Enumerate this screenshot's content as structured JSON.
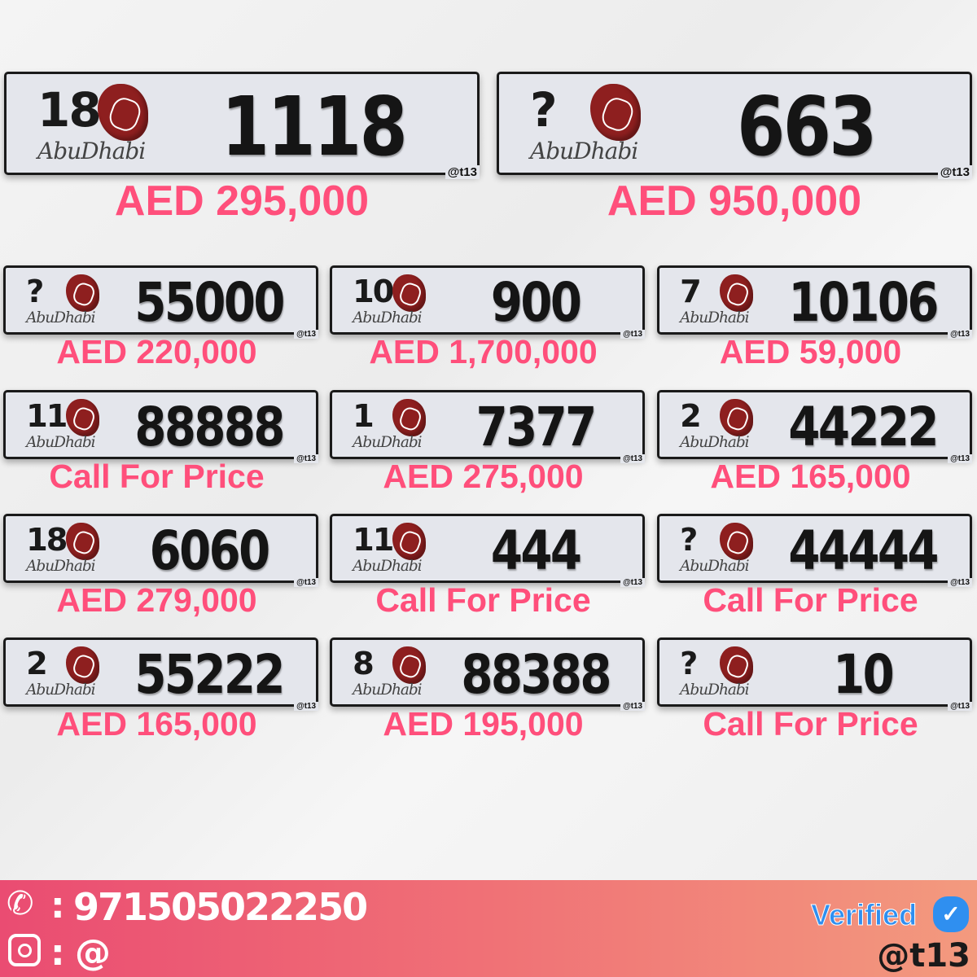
{
  "plates": [
    {
      "code": "18",
      "number": "1118",
      "price": "AED 295,000"
    },
    {
      "code": "?",
      "number": "663",
      "price": "AED 950,000"
    },
    {
      "code": "?",
      "number": "55000",
      "price": "AED 220,000"
    },
    {
      "code": "10",
      "number": "900",
      "price": "AED 1,700,000"
    },
    {
      "code": "7",
      "number": "10106",
      "price": "AED 59,000"
    },
    {
      "code": "11",
      "number": "88888",
      "price": "Call For Price"
    },
    {
      "code": "1",
      "number": "7377",
      "price": "AED 275,000"
    },
    {
      "code": "2",
      "number": "44222",
      "price": "AED 165,000"
    },
    {
      "code": "18",
      "number": "6060",
      "price": "AED 279,000"
    },
    {
      "code": "11",
      "number": "444",
      "price": "Call For Price"
    },
    {
      "code": "?",
      "number": "44444",
      "price": "Call For Price"
    },
    {
      "code": "2",
      "number": "55222",
      "price": "AED 165,000"
    },
    {
      "code": "8",
      "number": "88388",
      "price": "AED 195,000"
    },
    {
      "code": "?",
      "number": "10",
      "price": "Call For Price"
    }
  ],
  "plate_city": "AbuDhabi",
  "plate_tag": "@t13",
  "footer": {
    "phone_sep": ":",
    "phone": "971505022250",
    "instagram_sep": ":",
    "instagram": "@",
    "verified": "Verified",
    "handle": "@t13"
  },
  "colors": {
    "price": "#ff4f7b",
    "footer_start": "#ea4c72",
    "footer_end": "#f39a7e",
    "verified": "#2f8ff0"
  }
}
